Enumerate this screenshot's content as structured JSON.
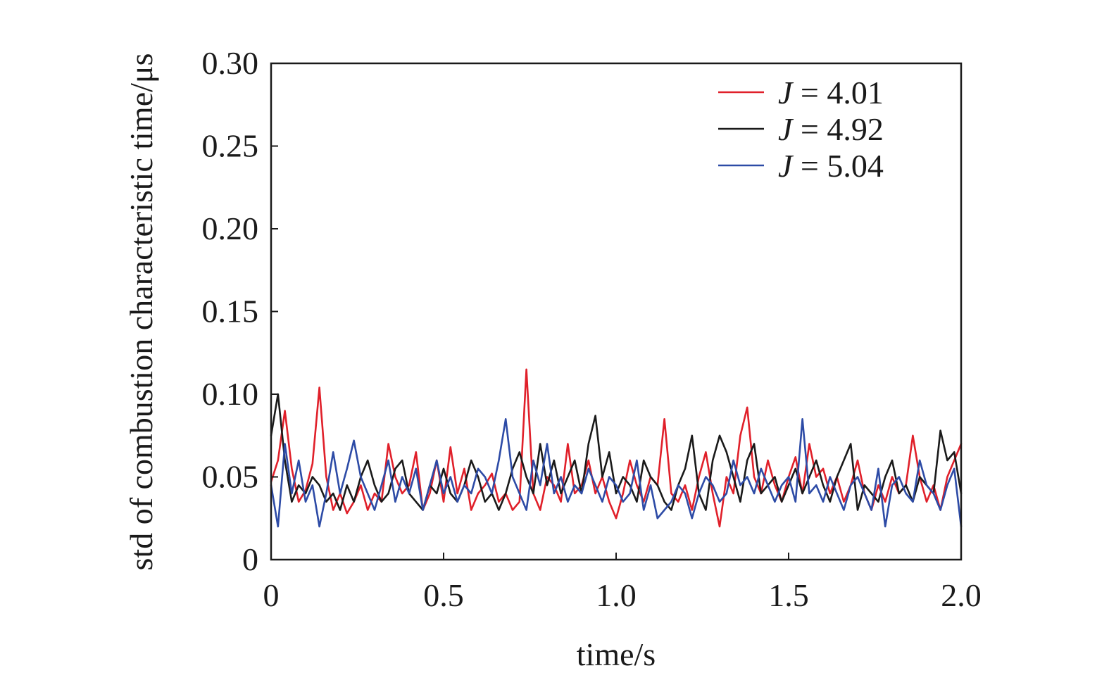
{
  "chart_data": {
    "type": "line",
    "xlabel": "time/s",
    "ylabel": "std of combustion characteristic time/μs",
    "xlim": [
      0,
      2.0
    ],
    "ylim": [
      0,
      0.3
    ],
    "xticks": [
      "0",
      "0.5",
      "1.0",
      "1.5",
      "2.0"
    ],
    "yticks": [
      "0",
      "0.05",
      "0.10",
      "0.15",
      "0.20",
      "0.25",
      "0.30"
    ],
    "grid": false,
    "legend_position": "top-right",
    "series": [
      {
        "label_var": "J",
        "label_rest": " = 4.01",
        "color": "#e0202a",
        "x": [
          0.0,
          0.02,
          0.04,
          0.06,
          0.08,
          0.1,
          0.12,
          0.14,
          0.16,
          0.18,
          0.2,
          0.22,
          0.24,
          0.26,
          0.28,
          0.3,
          0.32,
          0.34,
          0.36,
          0.38,
          0.4,
          0.42,
          0.44,
          0.46,
          0.48,
          0.5,
          0.52,
          0.54,
          0.56,
          0.58,
          0.6,
          0.62,
          0.64,
          0.66,
          0.68,
          0.7,
          0.72,
          0.74,
          0.76,
          0.78,
          0.8,
          0.82,
          0.84,
          0.86,
          0.88,
          0.9,
          0.92,
          0.94,
          0.96,
          0.98,
          1.0,
          1.02,
          1.04,
          1.06,
          1.08,
          1.1,
          1.12,
          1.14,
          1.16,
          1.18,
          1.2,
          1.22,
          1.24,
          1.26,
          1.28,
          1.3,
          1.32,
          1.34,
          1.36,
          1.38,
          1.4,
          1.42,
          1.44,
          1.46,
          1.48,
          1.5,
          1.52,
          1.54,
          1.56,
          1.58,
          1.6,
          1.62,
          1.64,
          1.66,
          1.68,
          1.7,
          1.72,
          1.74,
          1.76,
          1.78,
          1.8,
          1.82,
          1.84,
          1.86,
          1.88,
          1.9,
          1.92,
          1.94,
          1.96,
          1.98,
          2.0
        ],
        "y": [
          0.047,
          0.06,
          0.09,
          0.055,
          0.035,
          0.042,
          0.058,
          0.104,
          0.05,
          0.03,
          0.04,
          0.028,
          0.035,
          0.045,
          0.03,
          0.04,
          0.035,
          0.07,
          0.05,
          0.04,
          0.045,
          0.065,
          0.03,
          0.04,
          0.06,
          0.035,
          0.068,
          0.04,
          0.055,
          0.03,
          0.04,
          0.045,
          0.052,
          0.035,
          0.04,
          0.03,
          0.035,
          0.115,
          0.04,
          0.03,
          0.05,
          0.045,
          0.035,
          0.07,
          0.04,
          0.045,
          0.06,
          0.04,
          0.05,
          0.035,
          0.025,
          0.04,
          0.06,
          0.045,
          0.035,
          0.05,
          0.045,
          0.085,
          0.04,
          0.035,
          0.045,
          0.03,
          0.05,
          0.065,
          0.04,
          0.02,
          0.05,
          0.04,
          0.075,
          0.092,
          0.05,
          0.04,
          0.06,
          0.045,
          0.035,
          0.05,
          0.062,
          0.04,
          0.07,
          0.05,
          0.055,
          0.04,
          0.05,
          0.035,
          0.045,
          0.06,
          0.04,
          0.03,
          0.045,
          0.035,
          0.05,
          0.04,
          0.045,
          0.075,
          0.05,
          0.035,
          0.045,
          0.03,
          0.05,
          0.06,
          0.07
        ]
      },
      {
        "label_var": "J",
        "label_rest": " = 4.92",
        "color": "#1a1a1a",
        "x": [
          0.0,
          0.02,
          0.04,
          0.06,
          0.08,
          0.1,
          0.12,
          0.14,
          0.16,
          0.18,
          0.2,
          0.22,
          0.24,
          0.26,
          0.28,
          0.3,
          0.32,
          0.34,
          0.36,
          0.38,
          0.4,
          0.42,
          0.44,
          0.46,
          0.48,
          0.5,
          0.52,
          0.54,
          0.56,
          0.58,
          0.6,
          0.62,
          0.64,
          0.66,
          0.68,
          0.7,
          0.72,
          0.74,
          0.76,
          0.78,
          0.8,
          0.82,
          0.84,
          0.86,
          0.88,
          0.9,
          0.92,
          0.94,
          0.96,
          0.98,
          1.0,
          1.02,
          1.04,
          1.06,
          1.08,
          1.1,
          1.12,
          1.14,
          1.16,
          1.18,
          1.2,
          1.22,
          1.24,
          1.26,
          1.28,
          1.3,
          1.32,
          1.34,
          1.36,
          1.38,
          1.4,
          1.42,
          1.44,
          1.46,
          1.48,
          1.5,
          1.52,
          1.54,
          1.56,
          1.58,
          1.6,
          1.62,
          1.64,
          1.66,
          1.68,
          1.7,
          1.72,
          1.74,
          1.76,
          1.78,
          1.8,
          1.82,
          1.84,
          1.86,
          1.88,
          1.9,
          1.92,
          1.94,
          1.96,
          1.98,
          2.0
        ],
        "y": [
          0.075,
          0.1,
          0.06,
          0.035,
          0.045,
          0.04,
          0.05,
          0.045,
          0.035,
          0.04,
          0.03,
          0.045,
          0.035,
          0.05,
          0.06,
          0.045,
          0.035,
          0.04,
          0.055,
          0.06,
          0.04,
          0.035,
          0.03,
          0.045,
          0.04,
          0.055,
          0.04,
          0.035,
          0.045,
          0.06,
          0.05,
          0.035,
          0.04,
          0.03,
          0.04,
          0.055,
          0.065,
          0.05,
          0.04,
          0.07,
          0.045,
          0.06,
          0.04,
          0.05,
          0.06,
          0.04,
          0.07,
          0.087,
          0.05,
          0.065,
          0.04,
          0.05,
          0.045,
          0.035,
          0.06,
          0.05,
          0.045,
          0.035,
          0.03,
          0.045,
          0.055,
          0.075,
          0.04,
          0.03,
          0.06,
          0.075,
          0.065,
          0.05,
          0.035,
          0.06,
          0.07,
          0.04,
          0.045,
          0.05,
          0.035,
          0.045,
          0.055,
          0.04,
          0.05,
          0.06,
          0.045,
          0.035,
          0.05,
          0.06,
          0.07,
          0.03,
          0.045,
          0.04,
          0.035,
          0.05,
          0.06,
          0.04,
          0.045,
          0.035,
          0.05,
          0.045,
          0.04,
          0.078,
          0.06,
          0.065,
          0.04
        ]
      },
      {
        "label_var": "J",
        "label_rest": " = 5.04",
        "color": "#2d4ba6",
        "x": [
          0.0,
          0.02,
          0.04,
          0.06,
          0.08,
          0.1,
          0.12,
          0.14,
          0.16,
          0.18,
          0.2,
          0.22,
          0.24,
          0.26,
          0.28,
          0.3,
          0.32,
          0.34,
          0.36,
          0.38,
          0.4,
          0.42,
          0.44,
          0.46,
          0.48,
          0.5,
          0.52,
          0.54,
          0.56,
          0.58,
          0.6,
          0.62,
          0.64,
          0.66,
          0.68,
          0.7,
          0.72,
          0.74,
          0.76,
          0.78,
          0.8,
          0.82,
          0.84,
          0.86,
          0.88,
          0.9,
          0.92,
          0.94,
          0.96,
          0.98,
          1.0,
          1.02,
          1.04,
          1.06,
          1.08,
          1.1,
          1.12,
          1.14,
          1.16,
          1.18,
          1.2,
          1.22,
          1.24,
          1.26,
          1.28,
          1.3,
          1.32,
          1.34,
          1.36,
          1.38,
          1.4,
          1.42,
          1.44,
          1.46,
          1.48,
          1.5,
          1.52,
          1.54,
          1.56,
          1.58,
          1.6,
          1.62,
          1.64,
          1.66,
          1.68,
          1.7,
          1.72,
          1.74,
          1.76,
          1.78,
          1.8,
          1.82,
          1.84,
          1.86,
          1.88,
          1.9,
          1.92,
          1.94,
          1.96,
          1.98,
          2.0
        ],
        "y": [
          0.045,
          0.02,
          0.07,
          0.04,
          0.06,
          0.035,
          0.045,
          0.02,
          0.04,
          0.065,
          0.04,
          0.055,
          0.072,
          0.05,
          0.04,
          0.03,
          0.045,
          0.06,
          0.035,
          0.05,
          0.04,
          0.055,
          0.03,
          0.045,
          0.06,
          0.04,
          0.05,
          0.035,
          0.045,
          0.04,
          0.055,
          0.05,
          0.04,
          0.06,
          0.085,
          0.05,
          0.04,
          0.03,
          0.06,
          0.045,
          0.07,
          0.04,
          0.05,
          0.035,
          0.045,
          0.04,
          0.055,
          0.045,
          0.035,
          0.05,
          0.045,
          0.035,
          0.04,
          0.06,
          0.03,
          0.045,
          0.025,
          0.03,
          0.035,
          0.045,
          0.04,
          0.025,
          0.04,
          0.05,
          0.045,
          0.035,
          0.04,
          0.06,
          0.045,
          0.05,
          0.04,
          0.055,
          0.045,
          0.035,
          0.045,
          0.05,
          0.035,
          0.085,
          0.04,
          0.045,
          0.035,
          0.05,
          0.04,
          0.03,
          0.045,
          0.05,
          0.04,
          0.03,
          0.055,
          0.02,
          0.045,
          0.05,
          0.04,
          0.035,
          0.06,
          0.045,
          0.04,
          0.03,
          0.045,
          0.055,
          0.02
        ]
      }
    ]
  }
}
